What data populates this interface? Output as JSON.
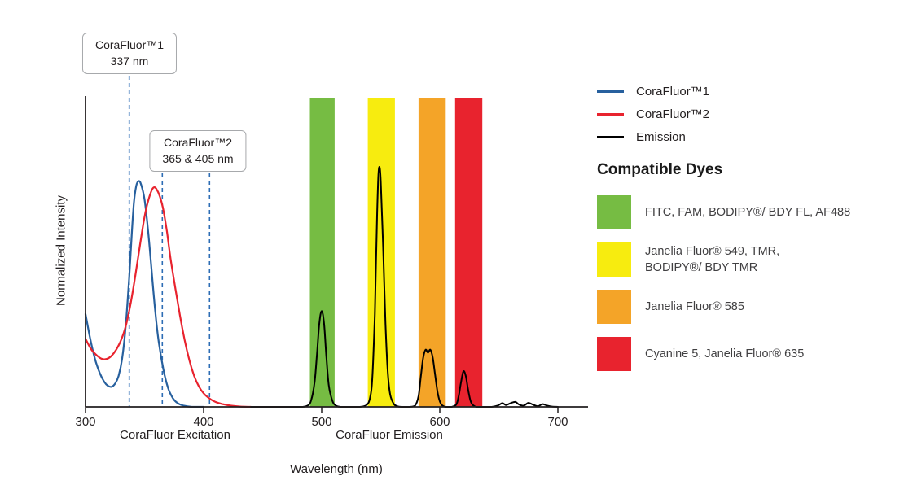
{
  "legend": {
    "items": [
      {
        "label": "CoraFluor™1",
        "color": "#27609E",
        "type": "line"
      },
      {
        "label": "CoraFluor™2",
        "color": "#E8232E",
        "type": "line"
      },
      {
        "label": "Emission",
        "color": "#000000",
        "type": "line"
      }
    ]
  },
  "compatible_dyes": {
    "heading": "Compatible Dyes",
    "items": [
      {
        "color": "#76BC43",
        "label": "FITC, FAM, BODIPY®/ BDY FL, AF488"
      },
      {
        "color": "#F7EC0F",
        "label": "Janelia Fluor® 549, TMR,\nBODIPY®/ BDY TMR"
      },
      {
        "color": "#F4A428",
        "label": "Janelia Fluor® 585"
      },
      {
        "color": "#E8232E",
        "label": "Cyanine 5, Janelia Fluor® 635"
      }
    ]
  },
  "callouts": [
    {
      "line1": "CoraFluor™1",
      "line2": "337 nm",
      "marker_nm": [
        337
      ]
    },
    {
      "line1": "CoraFluor™2",
      "line2": "365 & 405 nm",
      "marker_nm": [
        365,
        405
      ]
    }
  ],
  "chart_data": {
    "type": "line",
    "title": "",
    "xlabel": "Wavelength (nm)",
    "ylabel": "Normalized Intensity",
    "xlim": [
      300,
      700
    ],
    "ylim": [
      0,
      1
    ],
    "x_ticks": [
      300,
      400,
      500,
      600,
      700
    ],
    "grid": false,
    "legend_position": "top-right",
    "x_axis_group_labels": [
      {
        "label": "CoraFluor Excitation",
        "center_nm": 376
      },
      {
        "label": "CoraFluor Emission",
        "center_nm": 557
      }
    ],
    "excitation_markers_nm": [
      337,
      365,
      405
    ],
    "marker_color": "#2D6DB5",
    "filter_bands": [
      {
        "range_nm": [
          490,
          511
        ],
        "color": "#76BC43",
        "dyes": "FITC, FAM, BODIPY®/ BDY FL, AF488"
      },
      {
        "range_nm": [
          539,
          562
        ],
        "color": "#F7EC0F",
        "dyes": "Janelia Fluor® 549, TMR, BODIPY®/ BDY TMR"
      },
      {
        "range_nm": [
          582,
          605
        ],
        "color": "#F4A428",
        "dyes": "Janelia Fluor® 585"
      },
      {
        "range_nm": [
          613,
          636
        ],
        "color": "#E8232E",
        "dyes": "Cyanine 5, Janelia Fluor® 635"
      }
    ],
    "series": [
      {
        "name": "CoraFluor™1",
        "role": "excitation",
        "color": "#27609E",
        "points": [
          [
            300,
            0.3
          ],
          [
            304,
            0.22
          ],
          [
            308,
            0.155
          ],
          [
            312,
            0.11
          ],
          [
            316,
            0.08
          ],
          [
            319,
            0.068
          ],
          [
            322,
            0.065
          ],
          [
            325,
            0.075
          ],
          [
            328,
            0.1
          ],
          [
            331,
            0.155
          ],
          [
            334,
            0.26
          ],
          [
            337,
            0.42
          ],
          [
            339,
            0.55
          ],
          [
            341,
            0.66
          ],
          [
            343,
            0.715
          ],
          [
            345,
            0.73
          ],
          [
            347,
            0.72
          ],
          [
            350,
            0.67
          ],
          [
            353,
            0.57
          ],
          [
            356,
            0.44
          ],
          [
            359,
            0.31
          ],
          [
            362,
            0.21
          ],
          [
            366,
            0.12
          ],
          [
            370,
            0.06
          ],
          [
            374,
            0.028
          ],
          [
            378,
            0.012
          ],
          [
            383,
            0.004
          ],
          [
            390,
            0.0
          ],
          [
            400,
            0.0
          ]
        ]
      },
      {
        "name": "CoraFluor™2",
        "role": "excitation",
        "color": "#E8232E",
        "points": [
          [
            300,
            0.22
          ],
          [
            305,
            0.185
          ],
          [
            310,
            0.165
          ],
          [
            314,
            0.155
          ],
          [
            318,
            0.155
          ],
          [
            322,
            0.165
          ],
          [
            326,
            0.185
          ],
          [
            330,
            0.215
          ],
          [
            334,
            0.26
          ],
          [
            338,
            0.33
          ],
          [
            342,
            0.42
          ],
          [
            346,
            0.52
          ],
          [
            350,
            0.615
          ],
          [
            353,
            0.665
          ],
          [
            356,
            0.7
          ],
          [
            358,
            0.71
          ],
          [
            360,
            0.705
          ],
          [
            363,
            0.68
          ],
          [
            366,
            0.635
          ],
          [
            369,
            0.565
          ],
          [
            372,
            0.48
          ],
          [
            376,
            0.385
          ],
          [
            380,
            0.295
          ],
          [
            384,
            0.215
          ],
          [
            388,
            0.15
          ],
          [
            392,
            0.1
          ],
          [
            396,
            0.066
          ],
          [
            400,
            0.044
          ],
          [
            405,
            0.027
          ],
          [
            410,
            0.016
          ],
          [
            416,
            0.009
          ],
          [
            423,
            0.004
          ],
          [
            431,
            0.001
          ],
          [
            440,
            0.0
          ]
        ]
      },
      {
        "name": "Emission",
        "role": "emission",
        "color": "#000000",
        "points": [
          [
            440,
            0
          ],
          [
            460,
            0
          ],
          [
            475,
            0
          ],
          [
            484,
            0
          ],
          [
            488,
            0.004
          ],
          [
            491,
            0.02
          ],
          [
            494,
            0.08
          ],
          [
            496,
            0.17
          ],
          [
            498,
            0.27
          ],
          [
            500,
            0.31
          ],
          [
            502,
            0.27
          ],
          [
            504,
            0.16
          ],
          [
            506,
            0.07
          ],
          [
            509,
            0.02
          ],
          [
            512,
            0.004
          ],
          [
            516,
            0
          ],
          [
            524,
            0
          ],
          [
            532,
            0
          ],
          [
            538,
            0.006
          ],
          [
            541,
            0.03
          ],
          [
            543,
            0.1
          ],
          [
            545,
            0.3
          ],
          [
            546,
            0.47
          ],
          [
            547,
            0.63
          ],
          [
            548,
            0.75
          ],
          [
            549,
            0.775
          ],
          [
            550,
            0.73
          ],
          [
            552,
            0.52
          ],
          [
            554,
            0.27
          ],
          [
            556,
            0.11
          ],
          [
            558,
            0.04
          ],
          [
            561,
            0.01
          ],
          [
            564,
            0.002
          ],
          [
            568,
            0
          ],
          [
            574,
            0
          ],
          [
            579,
            0.004
          ],
          [
            582,
            0.035
          ],
          [
            584,
            0.1
          ],
          [
            586,
            0.16
          ],
          [
            588,
            0.185
          ],
          [
            590,
            0.175
          ],
          [
            592,
            0.185
          ],
          [
            594,
            0.16
          ],
          [
            596,
            0.105
          ],
          [
            598,
            0.05
          ],
          [
            600,
            0.018
          ],
          [
            602,
            0.005
          ],
          [
            605,
            0
          ],
          [
            610,
            0
          ],
          [
            614,
            0.008
          ],
          [
            616,
            0.035
          ],
          [
            618,
            0.08
          ],
          [
            620,
            0.115
          ],
          [
            622,
            0.1
          ],
          [
            624,
            0.055
          ],
          [
            626,
            0.02
          ],
          [
            628,
            0.006
          ],
          [
            631,
            0
          ],
          [
            638,
            0
          ],
          [
            644,
            0
          ],
          [
            649,
            0.004
          ],
          [
            653,
            0.012
          ],
          [
            656,
            0.006
          ],
          [
            660,
            0.012
          ],
          [
            664,
            0.016
          ],
          [
            667,
            0.008
          ],
          [
            671,
            0.004
          ],
          [
            675,
            0.013
          ],
          [
            679,
            0.007
          ],
          [
            683,
            0.002
          ],
          [
            687,
            0.009
          ],
          [
            691,
            0.004
          ],
          [
            695,
            0.001
          ],
          [
            700,
            0
          ]
        ]
      }
    ]
  }
}
